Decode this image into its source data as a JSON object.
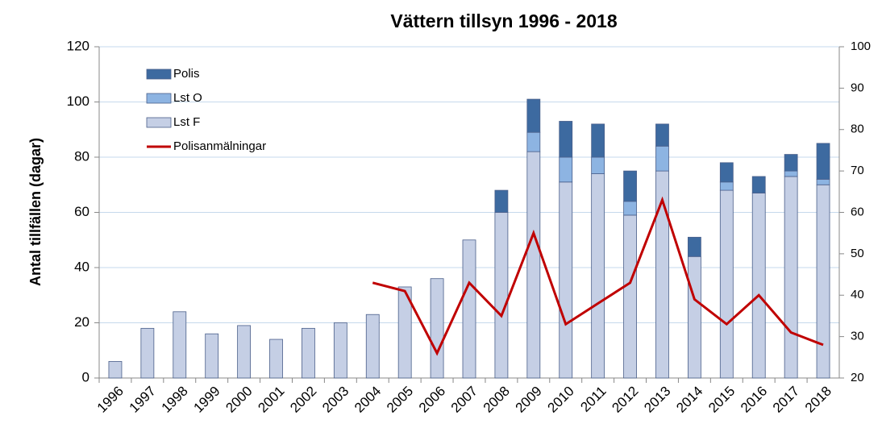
{
  "chart_data": {
    "type": "bar",
    "stacked": true,
    "title": "Vättern tillsyn 1996 - 2018",
    "y_label": "Antal tillfällen (dagar)",
    "categories": [
      "1996",
      "1997",
      "1998",
      "1999",
      "2000",
      "2001",
      "2002",
      "2003",
      "2004",
      "2005",
      "2006",
      "2007",
      "2008",
      "2009",
      "2010",
      "2011",
      "2012",
      "2013",
      "2014",
      "2015",
      "2016",
      "2017",
      "2018"
    ],
    "series": [
      {
        "name": "Lst F",
        "color": "#c5cfe5",
        "values": [
          6,
          18,
          24,
          16,
          19,
          14,
          18,
          20,
          23,
          33,
          36,
          50,
          60,
          82,
          71,
          74,
          59,
          75,
          44,
          68,
          67,
          73,
          70
        ]
      },
      {
        "name": "Lst O",
        "color": "#8db4e2",
        "values": [
          0,
          0,
          0,
          0,
          0,
          0,
          0,
          0,
          0,
          0,
          0,
          0,
          0,
          7,
          9,
          6,
          5,
          9,
          0,
          3,
          0,
          2,
          2
        ]
      },
      {
        "name": "Polis",
        "color": "#3d6aa0",
        "values": [
          0,
          0,
          0,
          0,
          0,
          0,
          0,
          0,
          0,
          0,
          0,
          0,
          8,
          12,
          13,
          12,
          11,
          8,
          7,
          7,
          6,
          6,
          13
        ]
      },
      {
        "name": "Polisanmälningar",
        "color": "#c00000",
        "type": "line",
        "axis": "y2",
        "values": [
          null,
          null,
          null,
          null,
          null,
          null,
          null,
          null,
          43,
          41,
          26,
          43,
          35,
          55,
          33,
          38,
          43,
          63,
          39,
          33,
          40,
          31,
          28
        ]
      }
    ],
    "ylim": [
      0,
      120
    ],
    "yticks": [
      0,
      20,
      40,
      60,
      80,
      100,
      120
    ],
    "y2lim": [
      20,
      100
    ],
    "y2ticks": [
      20,
      30,
      40,
      50,
      60,
      70,
      80,
      90,
      100
    ],
    "grid": true,
    "legend": "top-left"
  }
}
